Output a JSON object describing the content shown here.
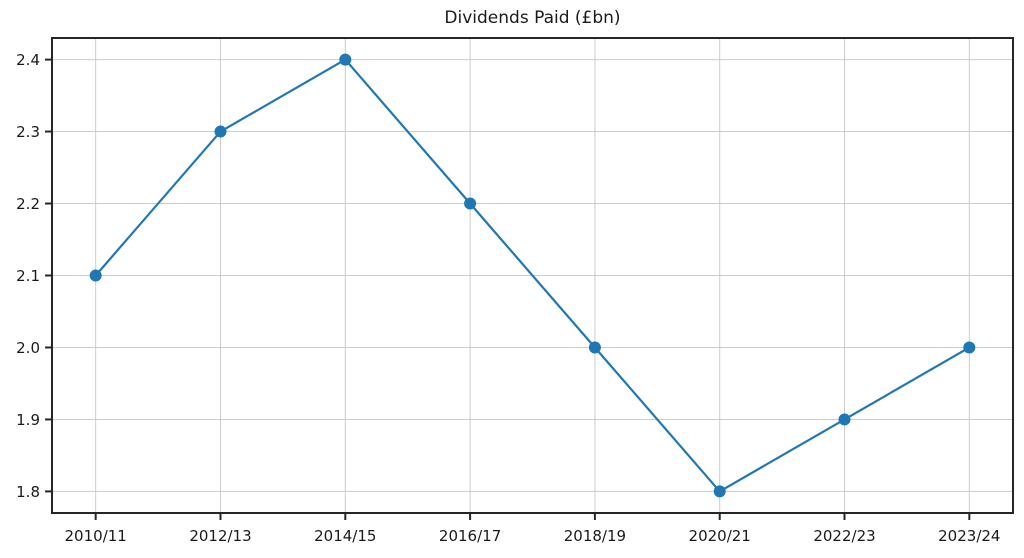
{
  "chart_data": {
    "type": "line",
    "title": "Dividends Paid (£bn)",
    "categories": [
      "2010/11",
      "2012/13",
      "2014/15",
      "2016/17",
      "2018/19",
      "2020/21",
      "2022/23",
      "2023/24"
    ],
    "values": [
      2.1,
      2.3,
      2.4,
      2.2,
      2.0,
      1.8,
      1.9,
      2.0
    ],
    "series_name": "Dividends Paid",
    "xlabel": "",
    "ylabel": "",
    "y_ticks": [
      1.8,
      1.9,
      2.0,
      2.1,
      2.2,
      2.3,
      2.4
    ],
    "y_tick_labels": [
      "1.8",
      "1.9",
      "2.0",
      "2.1",
      "2.2",
      "2.3",
      "2.4"
    ],
    "ylim": [
      1.77,
      2.43
    ],
    "grid": true,
    "legend": "none",
    "line_color": "#1f77b4",
    "marker": "circle",
    "grid_color": "#cccccc",
    "axis_color": "#262626",
    "text_color": "#1a1a1a",
    "background": "#ffffff"
  }
}
